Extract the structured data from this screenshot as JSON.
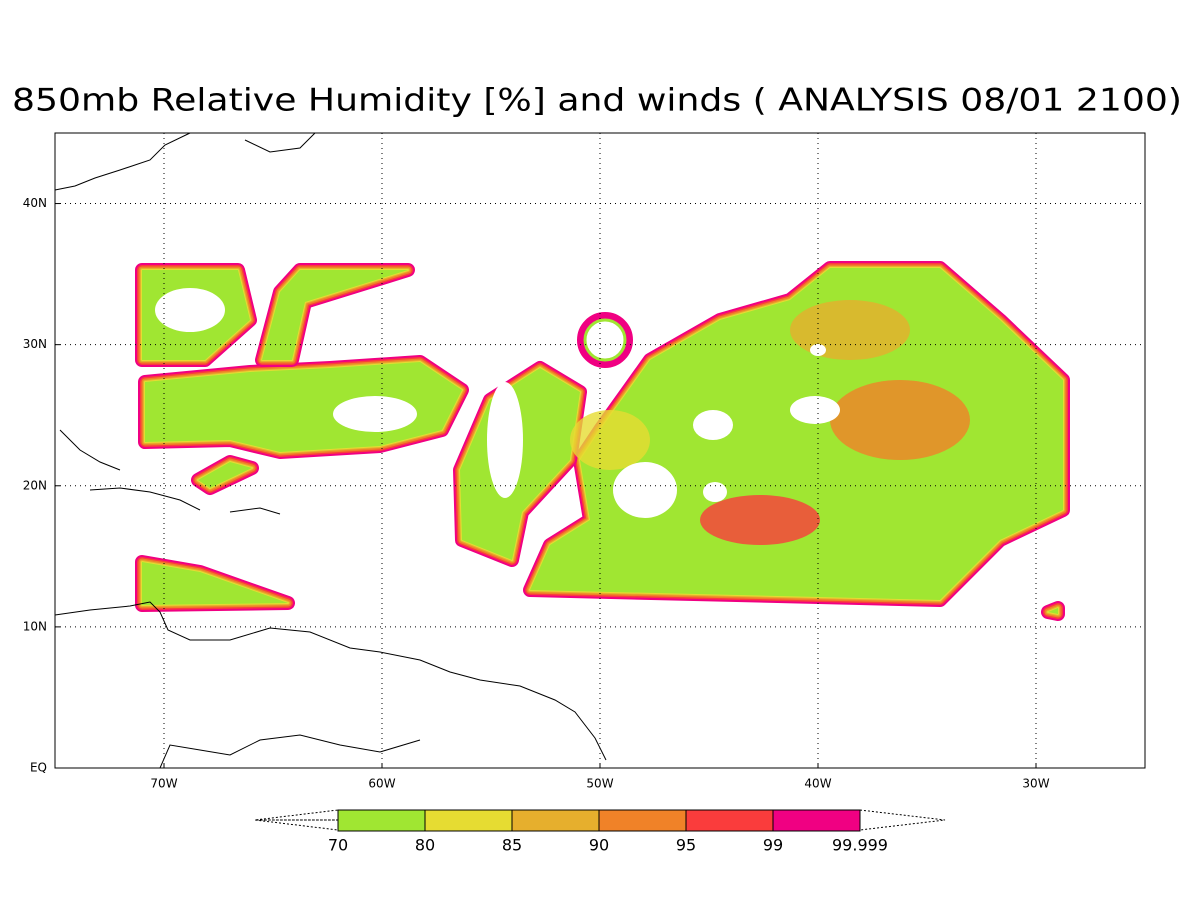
{
  "chart_data": {
    "type": "map",
    "title": "850mb Relative Humidity [%] and winds ( ANALYSIS 08/01 2100)",
    "xlim": [
      -75,
      -25
    ],
    "ylim": [
      0,
      45
    ],
    "xticks": [
      {
        "value": -70,
        "label": "70W"
      },
      {
        "value": -60,
        "label": "60W"
      },
      {
        "value": -50,
        "label": "50W"
      },
      {
        "value": -40,
        "label": "40W"
      },
      {
        "value": -30,
        "label": "30W"
      }
    ],
    "yticks": [
      {
        "value": 0,
        "label": "EQ"
      },
      {
        "value": 10,
        "label": "10N"
      },
      {
        "value": 20,
        "label": "20N"
      },
      {
        "value": 30,
        "label": "30N"
      },
      {
        "value": 40,
        "label": "40N"
      }
    ],
    "grid": true,
    "colorbar": {
      "levels": [
        70,
        80,
        85,
        90,
        95,
        99,
        99.999
      ],
      "colors": [
        "#a0e632",
        "#e6dc32",
        "#e6af2d",
        "#f08228",
        "#fa3c3c",
        "#f00082"
      ]
    }
  }
}
